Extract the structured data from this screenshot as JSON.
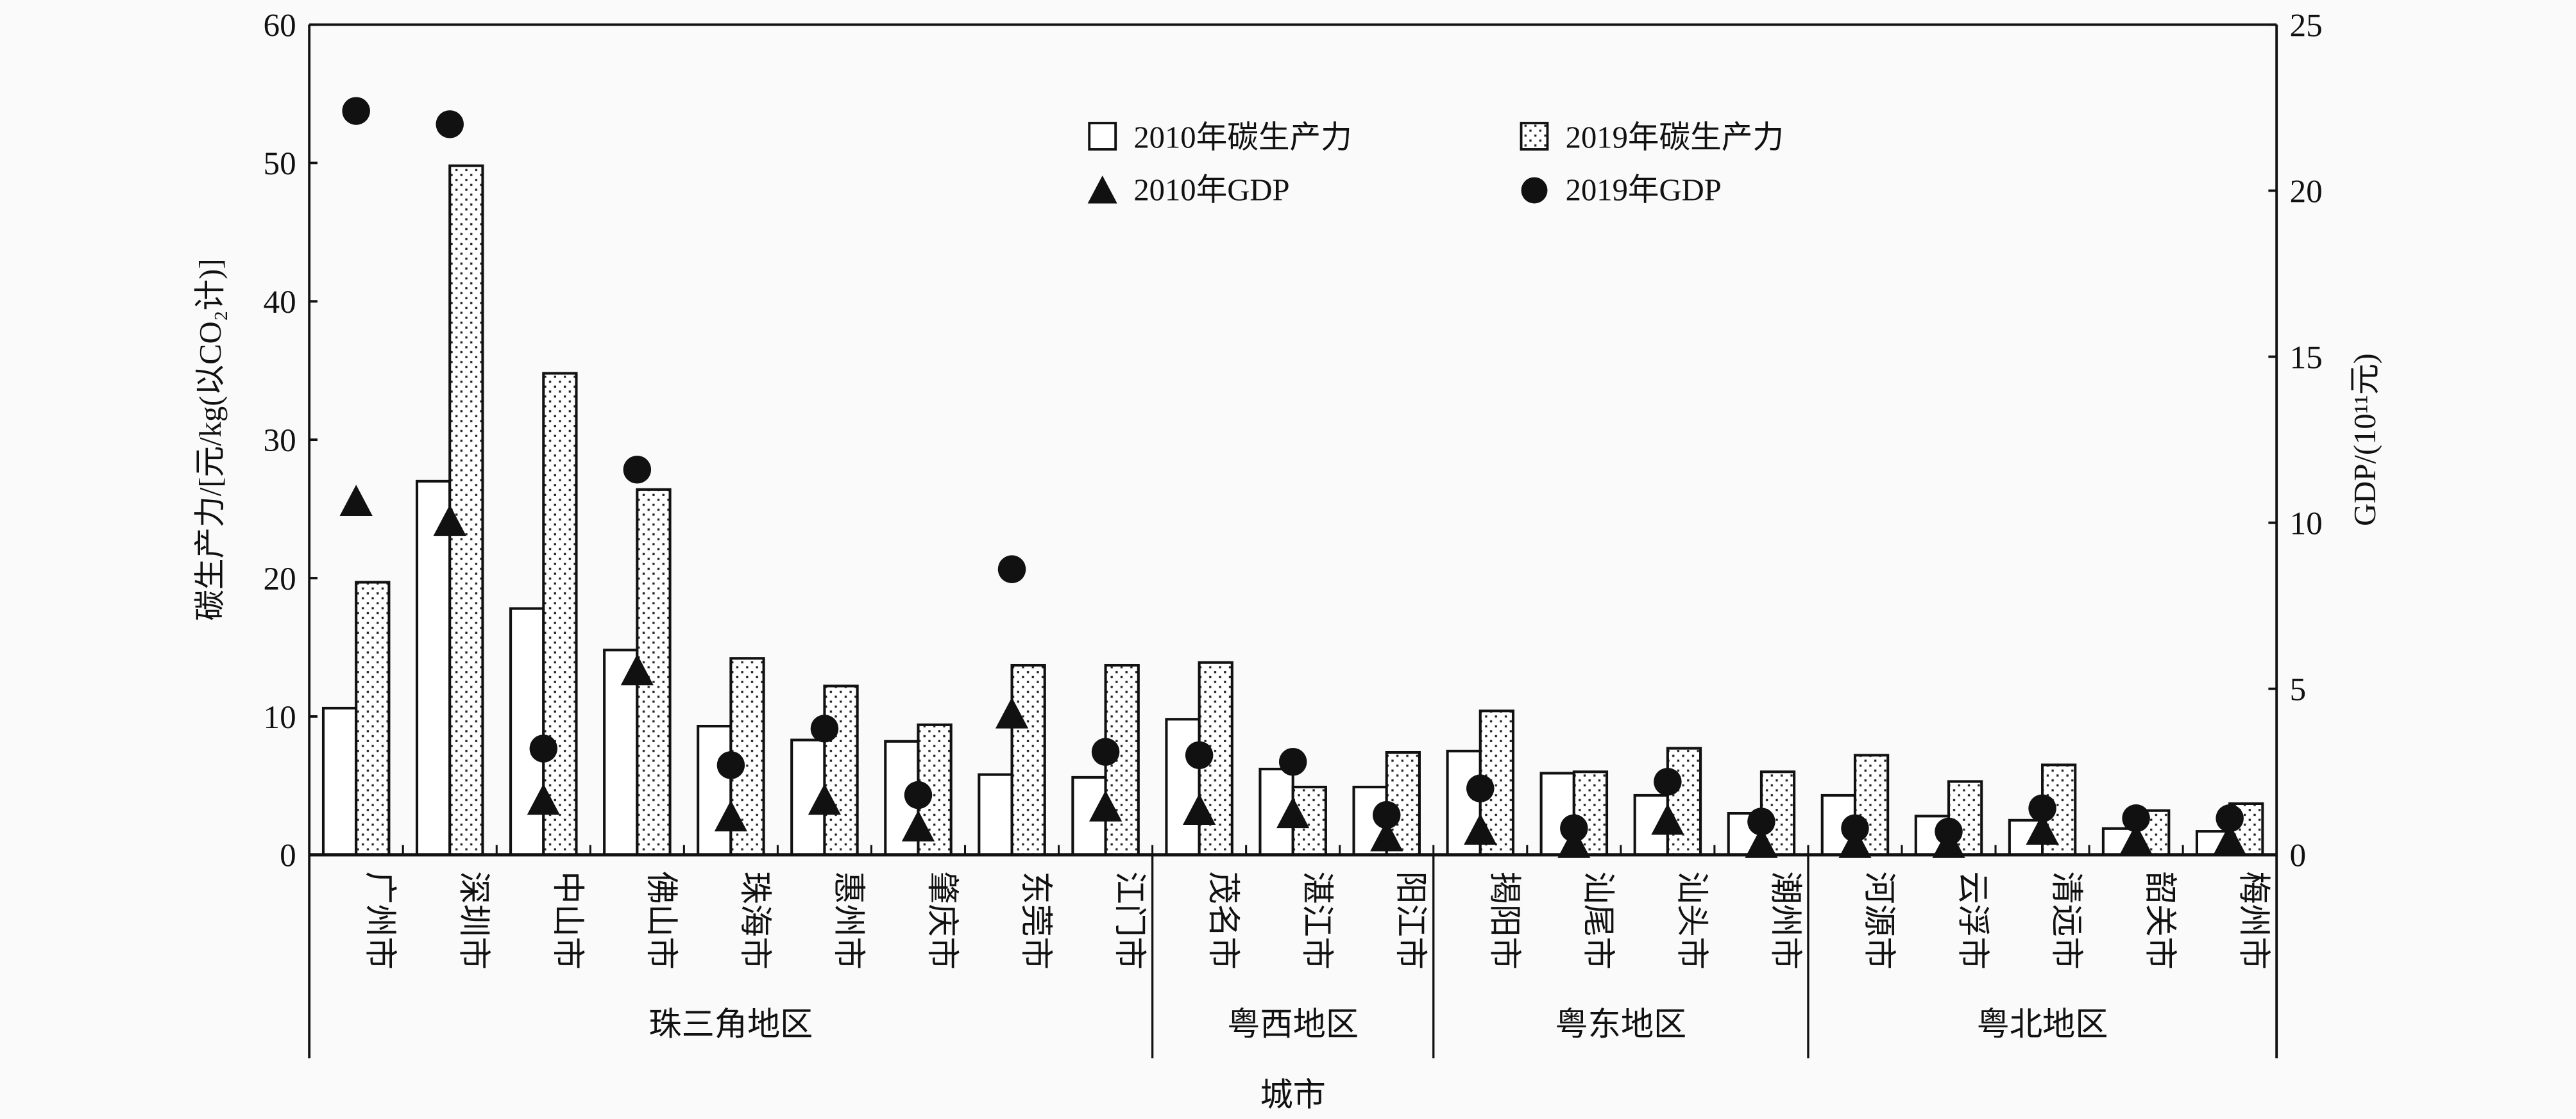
{
  "chart_data": {
    "type": "bar",
    "xlabel": "城市",
    "ylabel": "碳生产力/[元/kg(以CO₂计)]",
    "ylabel_right": "GDP/(10¹¹元)",
    "ylim": [
      0,
      60
    ],
    "ylim_right": [
      0,
      25
    ],
    "yticks": [
      "0",
      "10",
      "20",
      "30",
      "40",
      "50",
      "60"
    ],
    "yticks_right": [
      "0",
      "5",
      "10",
      "15",
      "20",
      "25"
    ],
    "categories": [
      "广州市",
      "深圳市",
      "中山市",
      "佛山市",
      "珠海市",
      "惠州市",
      "肇庆市",
      "东莞市",
      "江门市",
      "茂名市",
      "湛江市",
      "阳江市",
      "揭阳市",
      "汕尾市",
      "汕头市",
      "潮州市",
      "河源市",
      "云浮市",
      "清远市",
      "韶关市",
      "梅州市"
    ],
    "regions": [
      {
        "label": "珠三角地区",
        "count": 9
      },
      {
        "label": "粤西地区",
        "count": 3
      },
      {
        "label": "粤东地区",
        "count": 4
      },
      {
        "label": "粤北地区",
        "count": 5
      }
    ],
    "legend": [
      "2010年碳生产力",
      "2019年碳生产力",
      "2010年GDP",
      "2019年GDP"
    ],
    "legend_position": "top-center",
    "series": [
      {
        "name": "2010年碳生产力",
        "axis": "left",
        "kind": "bar",
        "values": [
          10.6,
          27.0,
          17.8,
          14.8,
          9.3,
          8.3,
          8.2,
          5.8,
          5.6,
          9.8,
          6.2,
          4.9,
          7.5,
          5.9,
          4.3,
          3.0,
          4.3,
          2.8,
          2.5,
          1.9,
          1.7
        ]
      },
      {
        "name": "2019年碳生产力",
        "axis": "left",
        "kind": "bar",
        "values": [
          19.7,
          49.8,
          34.8,
          26.4,
          14.2,
          12.2,
          9.4,
          13.7,
          13.7,
          13.9,
          4.9,
          7.4,
          10.4,
          6.0,
          7.7,
          6.0,
          7.2,
          5.3,
          6.5,
          3.2,
          3.7
        ]
      },
      {
        "name": "2010年GDP",
        "axis": "right",
        "kind": "triangle",
        "values": [
          10.6,
          10.0,
          1.6,
          5.5,
          1.1,
          1.6,
          0.8,
          4.2,
          1.4,
          1.3,
          1.2,
          0.5,
          0.7,
          0.3,
          1.0,
          0.3,
          0.3,
          0.3,
          0.7,
          0.4,
          0.4
        ]
      },
      {
        "name": "2019年GDP",
        "axis": "right",
        "kind": "circle",
        "values": [
          22.4,
          22.0,
          3.2,
          11.6,
          2.7,
          3.8,
          1.8,
          8.6,
          3.1,
          3.0,
          2.8,
          1.2,
          2.0,
          0.8,
          2.2,
          1.0,
          0.8,
          0.7,
          1.4,
          1.1,
          1.1
        ]
      }
    ]
  }
}
